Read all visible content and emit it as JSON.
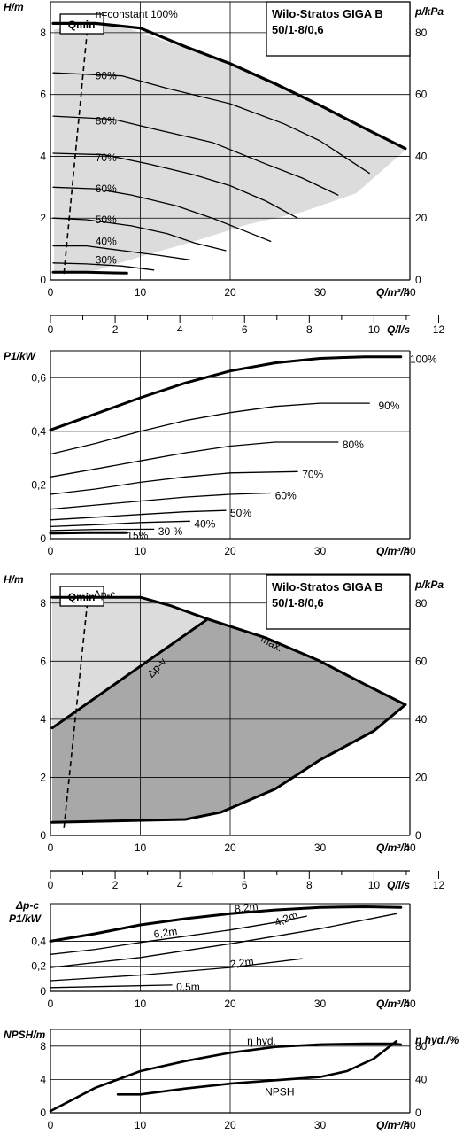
{
  "title": "Wilo-Stratos GIGA B",
  "model": "50/1-8/0,6",
  "qmin_label": "Qmin",
  "x_unit_label": "Q/m³/h",
  "x2_unit_label": "Q/l/s",
  "x_ticks": [
    "0",
    "10",
    "20",
    "30",
    "40"
  ],
  "x2_ticks": [
    "0",
    "2",
    "4",
    "6",
    "8",
    "10",
    "12"
  ],
  "colors": {
    "shade_light": "#dcdcdc",
    "shade_dark": "#a8a8a8",
    "line": "#000000",
    "background": "#ffffff"
  },
  "chart_data": [
    {
      "id": "hq_speed",
      "type": "line",
      "title": "Wilo-Stratos GIGA B 50/1-8/0,6",
      "xlabel": "Q/m³/h",
      "ylabel": "H/m",
      "y2label": "p/kPa",
      "xlim": [
        0,
        40
      ],
      "ylim": [
        0,
        9
      ],
      "y2lim": [
        0,
        90
      ],
      "grid": true,
      "yticks": [
        "0",
        "2",
        "4",
        "6",
        "8"
      ],
      "y2ticks": [
        "0",
        "20",
        "40",
        "60",
        "80"
      ],
      "qmin_line": [
        [
          1.5,
          0.2
        ],
        [
          4.2,
          8.4
        ]
      ],
      "operating_range": [
        [
          0.4,
          8.1
        ],
        [
          4,
          8.3
        ],
        [
          8,
          8.2
        ],
        [
          14,
          7.6
        ],
        [
          22,
          6.8
        ],
        [
          30,
          5.6
        ],
        [
          39.5,
          4.2
        ],
        [
          34,
          2.8
        ],
        [
          28,
          2.2
        ],
        [
          22,
          1.8
        ],
        [
          16,
          1.25
        ],
        [
          10,
          0.75
        ],
        [
          5,
          0.3
        ],
        [
          0.4,
          0.2
        ]
      ],
      "series": [
        {
          "name": "n=constant 100%",
          "label": "n=constant 100%",
          "values": [
            [
              0.3,
              8.3
            ],
            [
              5,
              8.3
            ],
            [
              10,
              8.15
            ],
            [
              15,
              7.55
            ],
            [
              20,
              7.0
            ],
            [
              25,
              6.35
            ],
            [
              30,
              5.65
            ],
            [
              35,
              4.9
            ],
            [
              39.5,
              4.25
            ]
          ]
        },
        {
          "name": "90%",
          "label": "90%",
          "values": [
            [
              0.3,
              6.7
            ],
            [
              8,
              6.6
            ],
            [
              13,
              6.2
            ],
            [
              20,
              5.7
            ],
            [
              26,
              5.05
            ],
            [
              30,
              4.5
            ],
            [
              35.5,
              3.45
            ]
          ]
        },
        {
          "name": "80%",
          "label": "80%",
          "values": [
            [
              0.3,
              5.3
            ],
            [
              7,
              5.2
            ],
            [
              12,
              4.85
            ],
            [
              18,
              4.45
            ],
            [
              24,
              3.75
            ],
            [
              28,
              3.3
            ],
            [
              32,
              2.75
            ]
          ]
        },
        {
          "name": "70%",
          "label": "70%",
          "values": [
            [
              0.3,
              4.1
            ],
            [
              6,
              4.05
            ],
            [
              11,
              3.75
            ],
            [
              16,
              3.4
            ],
            [
              20,
              3.05
            ],
            [
              24,
              2.55
            ],
            [
              27.5,
              2.0
            ]
          ]
        },
        {
          "name": "60%",
          "label": "60%",
          "values": [
            [
              0.3,
              3.0
            ],
            [
              5,
              2.95
            ],
            [
              9,
              2.75
            ],
            [
              14,
              2.4
            ],
            [
              18,
              2.0
            ],
            [
              21.5,
              1.6
            ],
            [
              24.5,
              1.25
            ]
          ]
        },
        {
          "name": "50%",
          "label": "50%",
          "values": [
            [
              0.3,
              2.0
            ],
            [
              4,
              1.95
            ],
            [
              9,
              1.75
            ],
            [
              13,
              1.5
            ],
            [
              16,
              1.2
            ],
            [
              19.5,
              0.95
            ]
          ]
        },
        {
          "name": "40%",
          "label": "40%",
          "values": [
            [
              0.3,
              1.1
            ],
            [
              4,
              1.1
            ],
            [
              8,
              0.95
            ],
            [
              12,
              0.8
            ],
            [
              15.5,
              0.65
            ]
          ]
        },
        {
          "name": "30%",
          "label": "30%",
          "values": [
            [
              0.3,
              0.55
            ],
            [
              4,
              0.52
            ],
            [
              8,
              0.45
            ],
            [
              11.5,
              0.32
            ]
          ]
        },
        {
          "name": "min",
          "label": "",
          "values": [
            [
              0.3,
              0.25
            ],
            [
              4,
              0.25
            ],
            [
              8.5,
              0.22
            ]
          ]
        }
      ]
    },
    {
      "id": "power_speed",
      "type": "line",
      "xlabel": "Q/m³/h",
      "ylabel": "P1/kW",
      "xlim": [
        0,
        40
      ],
      "ylim": [
        0,
        0.7
      ],
      "grid": true,
      "yticks": [
        "0",
        "0,2",
        "0,4",
        "0,6"
      ],
      "series": [
        {
          "name": "100%",
          "label": "100%",
          "values": [
            [
              0,
              0.405
            ],
            [
              5,
              0.465
            ],
            [
              10,
              0.525
            ],
            [
              15,
              0.58
            ],
            [
              20,
              0.625
            ],
            [
              25,
              0.655
            ],
            [
              30,
              0.672
            ],
            [
              35,
              0.678
            ],
            [
              39,
              0.678
            ]
          ]
        },
        {
          "name": "90%",
          "label": "90%",
          "values": [
            [
              0,
              0.315
            ],
            [
              5,
              0.355
            ],
            [
              10,
              0.4
            ],
            [
              15,
              0.44
            ],
            [
              20,
              0.47
            ],
            [
              25,
              0.493
            ],
            [
              30,
              0.505
            ],
            [
              35.5,
              0.505
            ]
          ]
        },
        {
          "name": "80%",
          "label": "80%",
          "values": [
            [
              0,
              0.23
            ],
            [
              5,
              0.26
            ],
            [
              10,
              0.29
            ],
            [
              15,
              0.32
            ],
            [
              20,
              0.345
            ],
            [
              25,
              0.36
            ],
            [
              32,
              0.36
            ]
          ]
        },
        {
          "name": "70%",
          "label": "70%",
          "values": [
            [
              0,
              0.165
            ],
            [
              5,
              0.185
            ],
            [
              10,
              0.21
            ],
            [
              15,
              0.23
            ],
            [
              20,
              0.245
            ],
            [
              27.5,
              0.25
            ]
          ]
        },
        {
          "name": "60%",
          "label": "60%",
          "values": [
            [
              0,
              0.11
            ],
            [
              5,
              0.125
            ],
            [
              10,
              0.14
            ],
            [
              15,
              0.155
            ],
            [
              20,
              0.165
            ],
            [
              24.5,
              0.17
            ]
          ]
        },
        {
          "name": "50%",
          "label": "50%",
          "values": [
            [
              0,
              0.07
            ],
            [
              5,
              0.08
            ],
            [
              10,
              0.09
            ],
            [
              15,
              0.1
            ],
            [
              19.5,
              0.105
            ]
          ]
        },
        {
          "name": "40%",
          "label": "40%",
          "values": [
            [
              0,
              0.045
            ],
            [
              5,
              0.052
            ],
            [
              10,
              0.06
            ],
            [
              15.5,
              0.065
            ]
          ]
        },
        {
          "name": "30 %",
          "label": "30 %",
          "values": [
            [
              0,
              0.03
            ],
            [
              5,
              0.034
            ],
            [
              11.5,
              0.035
            ]
          ]
        },
        {
          "name": "15%",
          "label": "15%",
          "values": [
            [
              0,
              0.02
            ],
            [
              4,
              0.022
            ],
            [
              8.5,
              0.022
            ]
          ]
        }
      ]
    },
    {
      "id": "hq_dp",
      "type": "line",
      "title": "Wilo-Stratos GIGA B 50/1-8/0,6",
      "xlabel": "Q/m³/h",
      "ylabel": "H/m",
      "y2label": "p/kPa",
      "xlim": [
        0,
        40
      ],
      "ylim": [
        0,
        9
      ],
      "y2lim": [
        0,
        90
      ],
      "grid": true,
      "yticks": [
        "0",
        "2",
        "4",
        "6",
        "8"
      ],
      "y2ticks": [
        "0",
        "20",
        "40",
        "60",
        "80"
      ],
      "qmin_line": [
        [
          1.5,
          0.25
        ],
        [
          4.2,
          8.3
        ]
      ],
      "light_region": [
        [
          0.2,
          8.2
        ],
        [
          10,
          8.2
        ],
        [
          17.5,
          7.5
        ],
        [
          0.2,
          3.7
        ]
      ],
      "dark_region": [
        [
          0.2,
          3.7
        ],
        [
          17.5,
          7.5
        ],
        [
          24,
          6.8
        ],
        [
          30,
          6.0
        ],
        [
          35,
          5.2
        ],
        [
          39.5,
          4.5
        ],
        [
          36,
          3.6
        ],
        [
          30,
          2.6
        ],
        [
          25,
          1.6
        ],
        [
          19,
          0.75
        ],
        [
          15,
          0.55
        ],
        [
          0.2,
          0.45
        ]
      ],
      "series": [
        {
          "name": "Δp-c",
          "label": "Δp-c",
          "values": [
            [
              0.2,
              8.2
            ],
            [
              10,
              8.2
            ]
          ]
        },
        {
          "name": "Δp-v",
          "label": "Δp-v",
          "values": [
            [
              0.2,
              3.7
            ],
            [
              17.5,
              7.45
            ]
          ]
        },
        {
          "name": "max.",
          "label": "max.",
          "values": [
            [
              10,
              8.2
            ],
            [
              13.5,
              7.9
            ],
            [
              17.5,
              7.45
            ],
            [
              24,
              6.8
            ],
            [
              30,
              6.0
            ],
            [
              35,
              5.2
            ],
            [
              39.5,
              4.5
            ]
          ]
        },
        {
          "name": "lower boundary",
          "label": "",
          "values": [
            [
              39.5,
              4.5
            ],
            [
              36,
              3.6
            ],
            [
              30,
              2.6
            ],
            [
              25,
              1.6
            ],
            [
              19,
              0.8
            ],
            [
              15,
              0.55
            ],
            [
              0.2,
              0.45
            ]
          ]
        }
      ]
    },
    {
      "id": "power_dp",
      "type": "line",
      "xlabel": "Q/m³/h",
      "ylabel": "Δp-c P1/kW",
      "xlim": [
        0,
        40
      ],
      "ylim": [
        0,
        0.7
      ],
      "grid": true,
      "yticks": [
        "0",
        "0,2",
        "0,4"
      ],
      "series": [
        {
          "name": "8,2m",
          "label": "8,2m",
          "values": [
            [
              0,
              0.4
            ],
            [
              5,
              0.46
            ],
            [
              10,
              0.53
            ],
            [
              15,
              0.58
            ],
            [
              20,
              0.62
            ],
            [
              25,
              0.65
            ],
            [
              30,
              0.67
            ],
            [
              35,
              0.675
            ],
            [
              39,
              0.67
            ]
          ]
        },
        {
          "name": "6,2m",
          "label": "6,2m",
          "values": [
            [
              0,
              0.295
            ],
            [
              5,
              0.335
            ],
            [
              10,
              0.39
            ],
            [
              15,
              0.44
            ],
            [
              20,
              0.49
            ],
            [
              25,
              0.55
            ],
            [
              28.5,
              0.6
            ]
          ]
        },
        {
          "name": "4,2m",
          "label": "4,2m",
          "values": [
            [
              0,
              0.19
            ],
            [
              10,
              0.27
            ],
            [
              20,
              0.38
            ],
            [
              30,
              0.5
            ],
            [
              38.5,
              0.62
            ]
          ]
        },
        {
          "name": "2,2m",
          "label": "2,2m",
          "values": [
            [
              0,
              0.085
            ],
            [
              10,
              0.13
            ],
            [
              20,
              0.19
            ],
            [
              28,
              0.26
            ]
          ]
        },
        {
          "name": "0,5m",
          "label": "0,5m",
          "values": [
            [
              0,
              0.03
            ],
            [
              7,
              0.04
            ],
            [
              13.5,
              0.05
            ]
          ]
        }
      ]
    },
    {
      "id": "npsh_eta",
      "type": "line",
      "xlabel": "Q/m³/h",
      "ylabel": "NPSH/m",
      "y2label": "η hyd./%",
      "xlim": [
        0,
        40
      ],
      "ylim": [
        0,
        10
      ],
      "y2lim": [
        0,
        100
      ],
      "grid": true,
      "yticks": [
        "0",
        "4",
        "8"
      ],
      "y2ticks": [
        "0",
        "40",
        "80"
      ],
      "series": [
        {
          "name": "η hyd.",
          "label": "η hyd.",
          "axis": "right",
          "values": [
            [
              0,
              2
            ],
            [
              5,
              30
            ],
            [
              10,
              50
            ],
            [
              15,
              62
            ],
            [
              20,
              72
            ],
            [
              25,
              79
            ],
            [
              30,
              82
            ],
            [
              35,
              83
            ],
            [
              38,
              83
            ],
            [
              39,
              82
            ]
          ]
        },
        {
          "name": "NPSH",
          "label": "NPSH",
          "axis": "left",
          "values": [
            [
              7.5,
              2.2
            ],
            [
              10,
              2.2
            ],
            [
              15,
              2.9
            ],
            [
              20,
              3.5
            ],
            [
              25,
              3.9
            ],
            [
              30,
              4.3
            ],
            [
              33,
              5.0
            ],
            [
              36,
              6.5
            ],
            [
              38.5,
              8.6
            ]
          ]
        }
      ]
    }
  ]
}
